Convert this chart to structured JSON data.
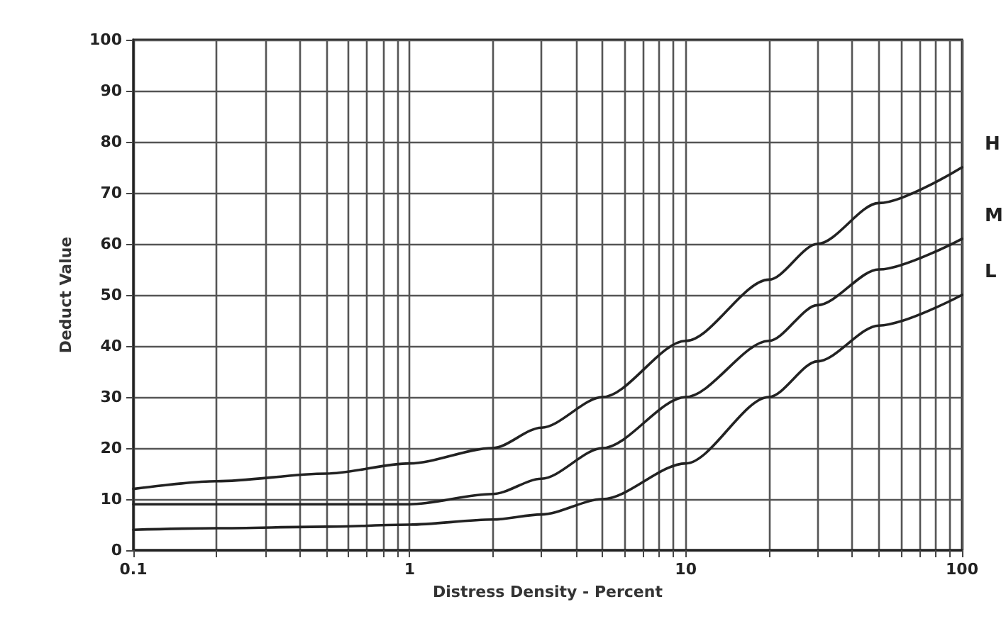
{
  "chart_data": {
    "type": "line",
    "xlabel": "Distress Density - Percent",
    "ylabel": "Deduct Value",
    "log": "x",
    "grid": true,
    "legend": false,
    "marker": "none",
    "line_style": "solid",
    "xlim": [
      0.1,
      100
    ],
    "xticks": [
      0.1,
      {
        "value": 0.2,
        "label": null
      },
      {
        "value": 0.3,
        "label": null
      },
      {
        "value": 0.4,
        "label": null
      },
      {
        "value": 0.5,
        "label": null
      },
      {
        "value": 0.6,
        "label": null
      },
      {
        "value": 0.7,
        "label": null
      },
      {
        "value": 0.8,
        "label": null
      },
      {
        "value": 0.9,
        "label": null
      },
      1,
      {
        "value": 2,
        "label": null
      },
      {
        "value": 3,
        "label": null
      },
      {
        "value": 4,
        "label": null
      },
      {
        "value": 5,
        "label": null
      },
      {
        "value": 6,
        "label": null
      },
      {
        "value": 7,
        "label": null
      },
      {
        "value": 8,
        "label": null
      },
      {
        "value": 9,
        "label": null
      },
      10,
      {
        "value": 20,
        "label": null
      },
      {
        "value": 30,
        "label": null
      },
      {
        "value": 40,
        "label": null
      },
      {
        "value": 50,
        "label": null
      },
      {
        "value": 60,
        "label": null
      },
      {
        "value": 70,
        "label": null
      },
      {
        "value": 80,
        "label": null
      },
      {
        "value": 90,
        "label": null
      },
      100
    ],
    "ylim": [
      0,
      100
    ],
    "yticks": [
      0,
      10,
      20,
      30,
      40,
      50,
      60,
      70,
      80,
      90,
      100
    ],
    "series": [
      {
        "name": "H",
        "color": "#222222",
        "x": [
          0.1,
          0.2,
          0.5,
          1,
          2,
          3,
          5,
          10,
          20,
          30,
          50,
          100
        ],
        "values": [
          12,
          13.5,
          15,
          17,
          20,
          24,
          30,
          41,
          53,
          60,
          68,
          75
        ]
      },
      {
        "name": "M",
        "color": "#222222",
        "x": [
          0.1,
          0.2,
          0.5,
          1,
          2,
          3,
          5,
          10,
          20,
          30,
          50,
          100
        ],
        "values": [
          9,
          9,
          9,
          9,
          11,
          14,
          20,
          30,
          41,
          48,
          55,
          61
        ]
      },
      {
        "name": "L",
        "color": "#222222",
        "x": [
          0.1,
          0.2,
          0.5,
          1,
          2,
          3,
          5,
          10,
          20,
          30,
          50,
          100
        ],
        "values": [
          4,
          4.3,
          4.6,
          5,
          6,
          7,
          10,
          17,
          30,
          37,
          44,
          50
        ]
      }
    ]
  }
}
